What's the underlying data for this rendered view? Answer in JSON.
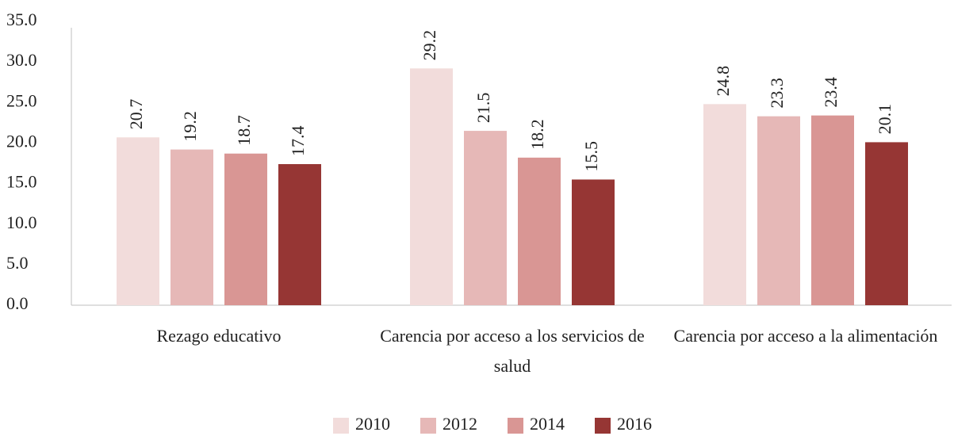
{
  "chart_data": {
    "type": "bar",
    "categories": [
      "Rezago educativo",
      "Carencia por acceso a los servicios de salud",
      "Carencia por acceso a la alimentación"
    ],
    "series": [
      {
        "name": "2010",
        "color": "#f2dcdb",
        "values": [
          20.7,
          29.2,
          24.8
        ]
      },
      {
        "name": "2012",
        "color": "#e6b8b7",
        "values": [
          19.2,
          21.5,
          23.3
        ]
      },
      {
        "name": "2014",
        "color": "#d99694",
        "values": [
          18.7,
          18.2,
          23.4
        ]
      },
      {
        "name": "2016",
        "color": "#963634",
        "values": [
          17.4,
          15.5,
          20.1
        ]
      }
    ],
    "ylim": [
      0,
      35
    ],
    "yticks": [
      {
        "value": 0,
        "label": "0.0"
      },
      {
        "value": 5,
        "label": "5.0"
      },
      {
        "value": 10,
        "label": "10.0"
      },
      {
        "value": 15,
        "label": "15.0"
      },
      {
        "value": 20,
        "label": "20.0"
      },
      {
        "value": 25,
        "label": "25.0"
      },
      {
        "value": 30,
        "label": "30.0"
      },
      {
        "value": 35,
        "label": "35.0"
      }
    ],
    "grid": false,
    "legend": "bottom"
  }
}
